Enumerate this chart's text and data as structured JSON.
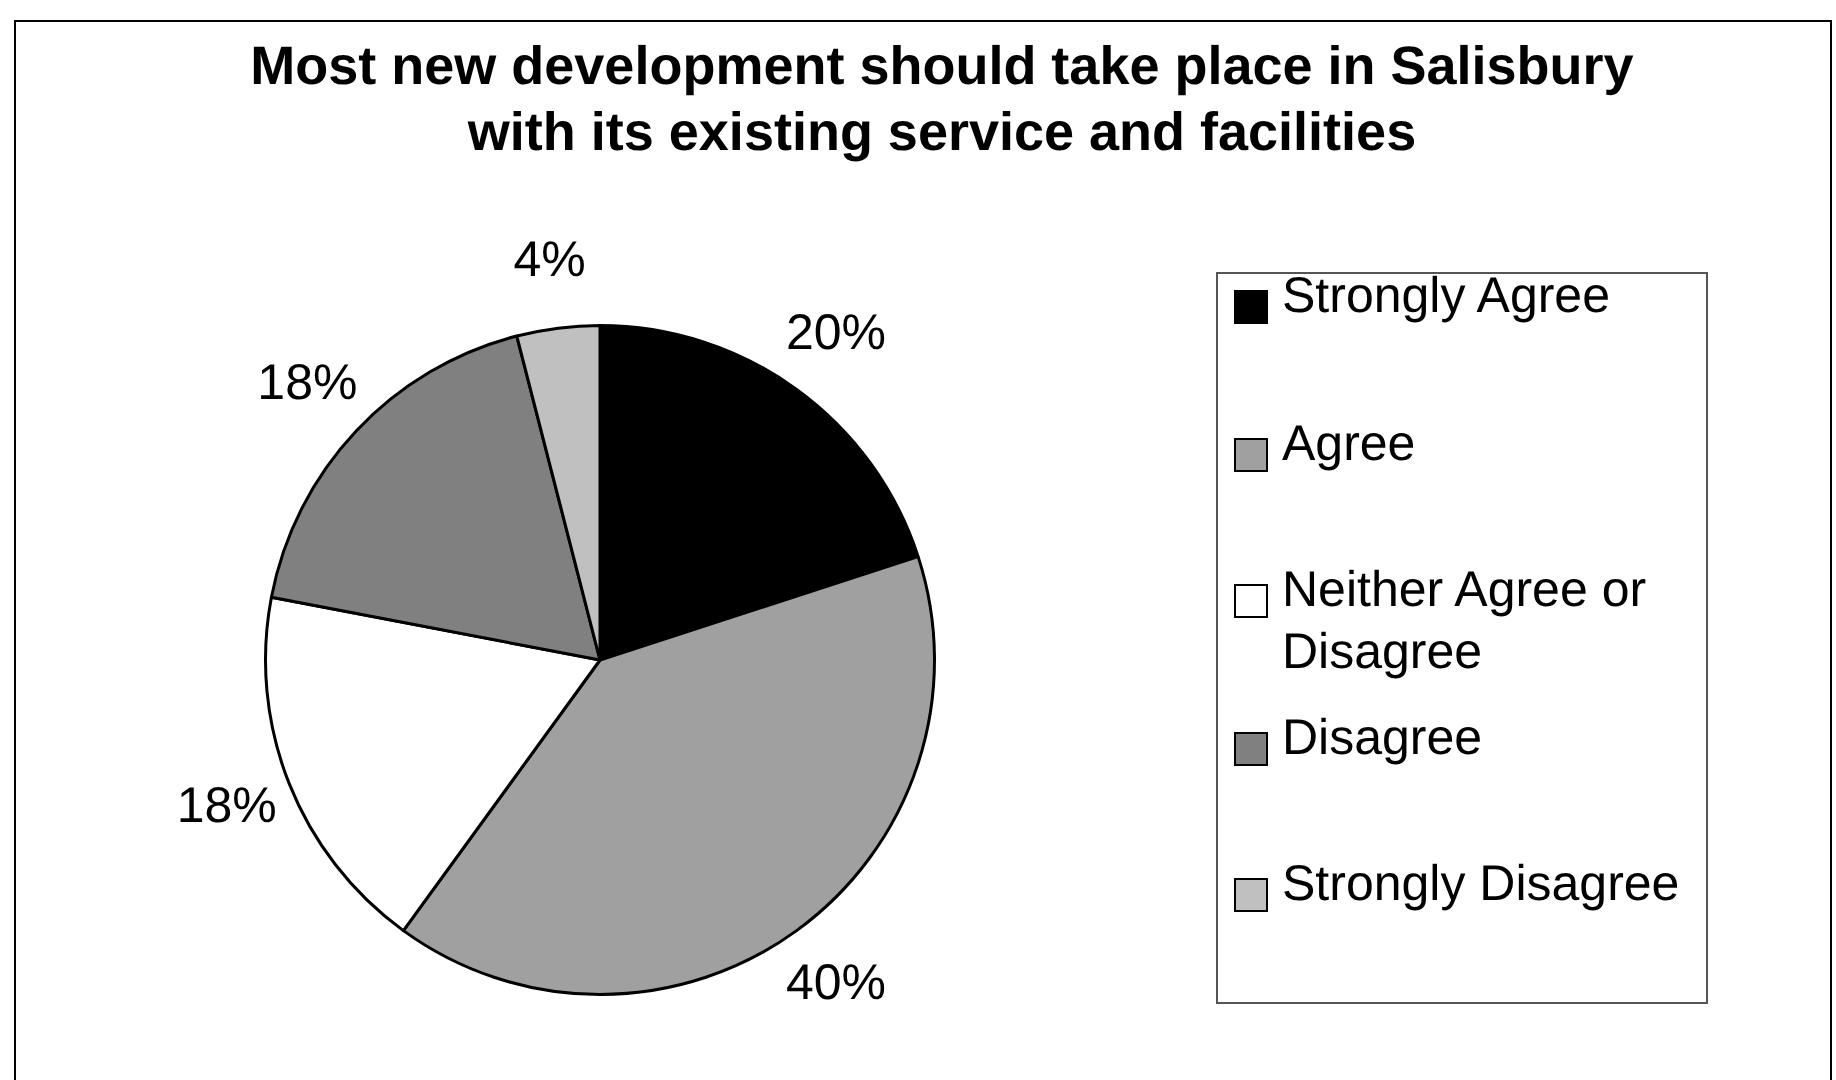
{
  "chart_data": {
    "type": "pie",
    "title": "Most new development should take place in Salisbury with its existing service and facilities",
    "categories": [
      "Strongly Agree",
      "Agree",
      "Neither Agree or Disagree",
      "Disagree",
      "Strongly Disagree"
    ],
    "values": [
      20,
      40,
      18,
      18,
      4
    ],
    "colors": [
      "#000000",
      "#a0a0a0",
      "#ffffff",
      "#808080",
      "#c0c0c0"
    ],
    "value_labels": [
      "20%",
      "40%",
      "18%",
      "18%",
      "4%"
    ],
    "legend": "right"
  }
}
